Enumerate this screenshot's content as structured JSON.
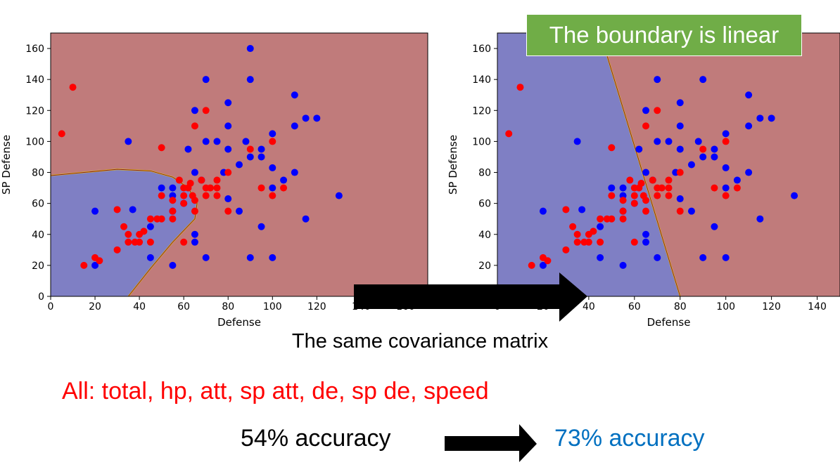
{
  "caption": "The same covariance matrix",
  "features_text": "All: total, hp, att, sp att, de, sp de, speed",
  "accuracy_before": "54% accuracy",
  "accuracy_after": "73% accuracy",
  "boundary_note": "The boundary is linear",
  "colors": {
    "class1_region": "#c07b7b",
    "class2_region": "#7f7fc4",
    "class1_points": "#ff0000",
    "class2_points": "#0000ff",
    "note_background": "#70ad47",
    "accuracy_after": "#0070c0"
  },
  "chart_data": [
    {
      "type": "scatter",
      "xlabel": "Defense",
      "ylabel": "SP Defense",
      "xlim": [
        0,
        170
      ],
      "ylim": [
        0,
        170
      ],
      "xticks": [
        "0",
        "20",
        "40",
        "60",
        "80",
        "100",
        "120",
        "140",
        "160"
      ],
      "yticks": [
        "0",
        "20",
        "40",
        "60",
        "80",
        "100",
        "120",
        "140",
        "160"
      ],
      "decision_boundary": "quadratic",
      "boundary_points": [
        [
          0,
          78
        ],
        [
          15,
          80
        ],
        [
          30,
          82
        ],
        [
          45,
          81
        ],
        [
          55,
          77
        ],
        [
          62,
          70
        ],
        [
          66,
          60
        ],
        [
          65,
          50
        ],
        [
          55,
          35
        ],
        [
          45,
          18
        ],
        [
          35,
          0
        ]
      ],
      "series": [
        {
          "color": "#0000ff",
          "points": [
            [
              20,
              20
            ],
            [
              20,
              55
            ],
            [
              35,
              100
            ],
            [
              37,
              56
            ],
            [
              45,
              25
            ],
            [
              45,
              45
            ],
            [
              50,
              70
            ],
            [
              55,
              55
            ],
            [
              55,
              65
            ],
            [
              55,
              70
            ],
            [
              55,
              20
            ],
            [
              60,
              60
            ],
            [
              62,
              95
            ],
            [
              65,
              120
            ],
            [
              65,
              80
            ],
            [
              65,
              40
            ],
            [
              65,
              35
            ],
            [
              68,
              75
            ],
            [
              70,
              140
            ],
            [
              70,
              100
            ],
            [
              70,
              25
            ],
            [
              75,
              100
            ],
            [
              78,
              80
            ],
            [
              80,
              125
            ],
            [
              80,
              110
            ],
            [
              80,
              95
            ],
            [
              80,
              63
            ],
            [
              85,
              85
            ],
            [
              85,
              55
            ],
            [
              88,
              100
            ],
            [
              90,
              160
            ],
            [
              90,
              140
            ],
            [
              90,
              90
            ],
            [
              90,
              25
            ],
            [
              95,
              95
            ],
            [
              95,
              90
            ],
            [
              95,
              45
            ],
            [
              100,
              105
            ],
            [
              100,
              83
            ],
            [
              100,
              70
            ],
            [
              100,
              25
            ],
            [
              105,
              75
            ],
            [
              110,
              130
            ],
            [
              110,
              110
            ],
            [
              110,
              80
            ],
            [
              115,
              115
            ],
            [
              115,
              50
            ],
            [
              120,
              115
            ],
            [
              130,
              65
            ]
          ]
        },
        {
          "color": "#ff0000",
          "points": [
            [
              5,
              105
            ],
            [
              10,
              135
            ],
            [
              15,
              20
            ],
            [
              20,
              25
            ],
            [
              22,
              23
            ],
            [
              30,
              30
            ],
            [
              30,
              56
            ],
            [
              33,
              45
            ],
            [
              35,
              40
            ],
            [
              35,
              35
            ],
            [
              38,
              35
            ],
            [
              40,
              40
            ],
            [
              40,
              35
            ],
            [
              42,
              42
            ],
            [
              45,
              35
            ],
            [
              45,
              50
            ],
            [
              48,
              50
            ],
            [
              50,
              96
            ],
            [
              50,
              50
            ],
            [
              50,
              65
            ],
            [
              55,
              62
            ],
            [
              55,
              55
            ],
            [
              55,
              50
            ],
            [
              58,
              75
            ],
            [
              60,
              70
            ],
            [
              60,
              65
            ],
            [
              60,
              60
            ],
            [
              60,
              35
            ],
            [
              62,
              70
            ],
            [
              63,
              73
            ],
            [
              64,
              65
            ],
            [
              65,
              110
            ],
            [
              65,
              55
            ],
            [
              65,
              62
            ],
            [
              68,
              75
            ],
            [
              70,
              120
            ],
            [
              70,
              70
            ],
            [
              70,
              65
            ],
            [
              72,
              70
            ],
            [
              75,
              75
            ],
            [
              75,
              70
            ],
            [
              75,
              65
            ],
            [
              80,
              80
            ],
            [
              80,
              55
            ],
            [
              90,
              95
            ],
            [
              95,
              70
            ],
            [
              100,
              100
            ],
            [
              100,
              65
            ],
            [
              105,
              70
            ]
          ]
        }
      ]
    },
    {
      "type": "scatter",
      "xlabel": "Defense",
      "ylabel": "SP Defense",
      "xlim": [
        0,
        150
      ],
      "ylim": [
        0,
        170
      ],
      "xticks": [
        "0",
        "20",
        "40",
        "60",
        "80",
        "100",
        "120",
        "140"
      ],
      "yticks": [
        "0",
        "20",
        "40",
        "60",
        "80",
        "100",
        "120",
        "140",
        "160"
      ],
      "decision_boundary": "linear",
      "boundary_points": [
        [
          45,
          170
        ],
        [
          80,
          0
        ]
      ],
      "series": [
        {
          "color": "#0000ff",
          "points": [
            [
              20,
              20
            ],
            [
              20,
              55
            ],
            [
              35,
              100
            ],
            [
              37,
              56
            ],
            [
              45,
              25
            ],
            [
              45,
              45
            ],
            [
              50,
              70
            ],
            [
              55,
              55
            ],
            [
              55,
              65
            ],
            [
              55,
              70
            ],
            [
              55,
              20
            ],
            [
              60,
              60
            ],
            [
              62,
              95
            ],
            [
              65,
              120
            ],
            [
              65,
              80
            ],
            [
              65,
              40
            ],
            [
              65,
              35
            ],
            [
              68,
              75
            ],
            [
              70,
              140
            ],
            [
              70,
              100
            ],
            [
              70,
              25
            ],
            [
              75,
              100
            ],
            [
              78,
              80
            ],
            [
              80,
              125
            ],
            [
              80,
              110
            ],
            [
              80,
              95
            ],
            [
              80,
              63
            ],
            [
              85,
              85
            ],
            [
              85,
              55
            ],
            [
              88,
              100
            ],
            [
              90,
              140
            ],
            [
              90,
              90
            ],
            [
              90,
              25
            ],
            [
              95,
              95
            ],
            [
              95,
              90
            ],
            [
              95,
              45
            ],
            [
              100,
              105
            ],
            [
              100,
              83
            ],
            [
              100,
              70
            ],
            [
              100,
              25
            ],
            [
              105,
              75
            ],
            [
              110,
              130
            ],
            [
              110,
              110
            ],
            [
              110,
              80
            ],
            [
              115,
              115
            ],
            [
              115,
              50
            ],
            [
              120,
              115
            ],
            [
              130,
              65
            ]
          ]
        },
        {
          "color": "#ff0000",
          "points": [
            [
              5,
              105
            ],
            [
              10,
              135
            ],
            [
              15,
              20
            ],
            [
              20,
              25
            ],
            [
              22,
              23
            ],
            [
              30,
              30
            ],
            [
              30,
              56
            ],
            [
              33,
              45
            ],
            [
              35,
              40
            ],
            [
              35,
              35
            ],
            [
              38,
              35
            ],
            [
              40,
              40
            ],
            [
              40,
              35
            ],
            [
              42,
              42
            ],
            [
              45,
              35
            ],
            [
              45,
              50
            ],
            [
              48,
              50
            ],
            [
              50,
              96
            ],
            [
              50,
              50
            ],
            [
              50,
              65
            ],
            [
              55,
              62
            ],
            [
              55,
              55
            ],
            [
              55,
              50
            ],
            [
              58,
              75
            ],
            [
              60,
              70
            ],
            [
              60,
              65
            ],
            [
              60,
              60
            ],
            [
              60,
              35
            ],
            [
              62,
              70
            ],
            [
              63,
              73
            ],
            [
              64,
              65
            ],
            [
              65,
              110
            ],
            [
              65,
              55
            ],
            [
              65,
              62
            ],
            [
              68,
              75
            ],
            [
              70,
              120
            ],
            [
              70,
              70
            ],
            [
              70,
              65
            ],
            [
              72,
              70
            ],
            [
              75,
              75
            ],
            [
              75,
              70
            ],
            [
              75,
              65
            ],
            [
              80,
              80
            ],
            [
              80,
              55
            ],
            [
              90,
              95
            ],
            [
              95,
              70
            ],
            [
              100,
              100
            ],
            [
              100,
              65
            ],
            [
              105,
              70
            ]
          ]
        }
      ]
    }
  ]
}
